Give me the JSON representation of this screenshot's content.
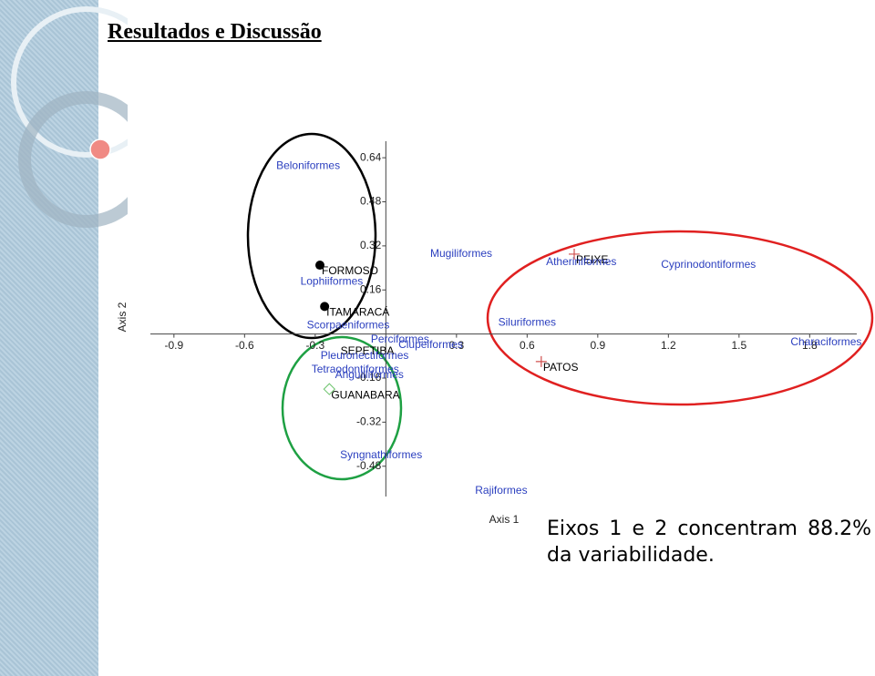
{
  "slide_title": "Resultados e Discussão",
  "caption": "Eixos 1 e 2 concentram 88.2% da variabilidade.",
  "chart_data": {
    "type": "scatter",
    "x_label": "Axis 1",
    "y_label": "Axis 2",
    "xlim": [
      -1.0,
      2.0
    ],
    "ylim": [
      -0.59,
      0.7
    ],
    "xticks": [
      -0.9,
      -0.6,
      -0.3,
      0.3,
      0.6,
      0.9,
      1.2,
      1.5,
      1.8
    ],
    "yticks": [
      0.64,
      0.48,
      0.32,
      0.16,
      -0.16,
      -0.32,
      -0.48
    ],
    "sites": [
      {
        "label": "FORMOSO",
        "x": -0.28,
        "y": 0.25,
        "marker": "dot",
        "color": "#000000"
      },
      {
        "label": "ITAMARACÁ",
        "x": -0.26,
        "y": 0.1,
        "marker": "dot",
        "color": "#000000"
      },
      {
        "label": "SEPETIBA",
        "x": -0.2,
        "y": -0.04,
        "marker": "none",
        "color": "#000000"
      },
      {
        "label": "PEIXE",
        "x": 0.8,
        "y": 0.29,
        "marker": "cross",
        "color": "#d0504f"
      },
      {
        "label": "PATOS",
        "x": 0.66,
        "y": -0.1,
        "marker": "cross",
        "color": "#d0504f"
      },
      {
        "label": "GUANABARA",
        "x": -0.24,
        "y": -0.2,
        "marker": "diamond",
        "color": "#6cc36c"
      }
    ],
    "orders_color": "#2b3fbf",
    "orders": [
      {
        "label": "Beloniformes",
        "x": -0.33,
        "y": 0.61
      },
      {
        "label": "Mugiliformes",
        "x": 0.32,
        "y": 0.29
      },
      {
        "label": "Atheriniformes",
        "x": 0.83,
        "y": 0.26
      },
      {
        "label": "Cyprinodontiformes",
        "x": 1.37,
        "y": 0.25
      },
      {
        "label": "Lophiiformes",
        "x": -0.23,
        "y": 0.19
      },
      {
        "label": "Scorpaeniformes",
        "x": -0.16,
        "y": 0.03
      },
      {
        "label": "Siluriformes",
        "x": 0.6,
        "y": 0.04
      },
      {
        "label": "Perciformes",
        "x": 0.06,
        "y": -0.02
      },
      {
        "label": "Clupeiformes",
        "x": 0.19,
        "y": -0.04
      },
      {
        "label": "Pleuronectiformes",
        "x": -0.09,
        "y": -0.08
      },
      {
        "label": "Characiformes",
        "x": 1.87,
        "y": -0.03
      },
      {
        "label": "Tetraodontiformes",
        "x": -0.13,
        "y": -0.13
      },
      {
        "label": "Anguilliformes",
        "x": -0.07,
        "y": -0.15
      },
      {
        "label": "Syngnathiformes",
        "x": -0.02,
        "y": -0.44
      },
      {
        "label": "Rajiformes",
        "x": 0.49,
        "y": -0.57
      }
    ]
  }
}
